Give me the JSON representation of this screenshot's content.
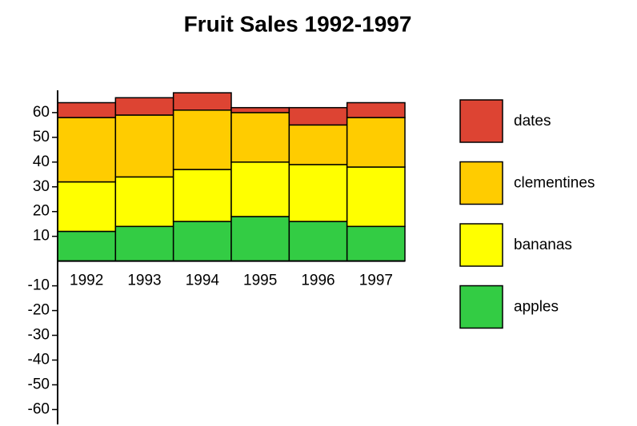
{
  "chart_data": {
    "type": "stacked_bar",
    "title": "Fruit Sales 1992-1997",
    "categories": [
      "1992",
      "1993",
      "1994",
      "1995",
      "1996",
      "1997"
    ],
    "series": [
      {
        "name": "apples",
        "color": "#33cc44",
        "values": [
          12,
          14,
          16,
          18,
          16,
          14
        ]
      },
      {
        "name": "bananas",
        "color": "#ffff00",
        "values": [
          20,
          20,
          21,
          22,
          23,
          24
        ]
      },
      {
        "name": "clementines",
        "color": "#ffcc00",
        "values": [
          26,
          25,
          24,
          20,
          16,
          20
        ]
      },
      {
        "name": "dates",
        "color": "#dd4433",
        "values": [
          6,
          7,
          7,
          2,
          7,
          6
        ]
      }
    ],
    "ylim": [
      -66,
      69
    ],
    "yticks": [
      -60,
      -50,
      -40,
      -30,
      -20,
      -10,
      10,
      20,
      30,
      40,
      50,
      60
    ],
    "legend": "right"
  }
}
